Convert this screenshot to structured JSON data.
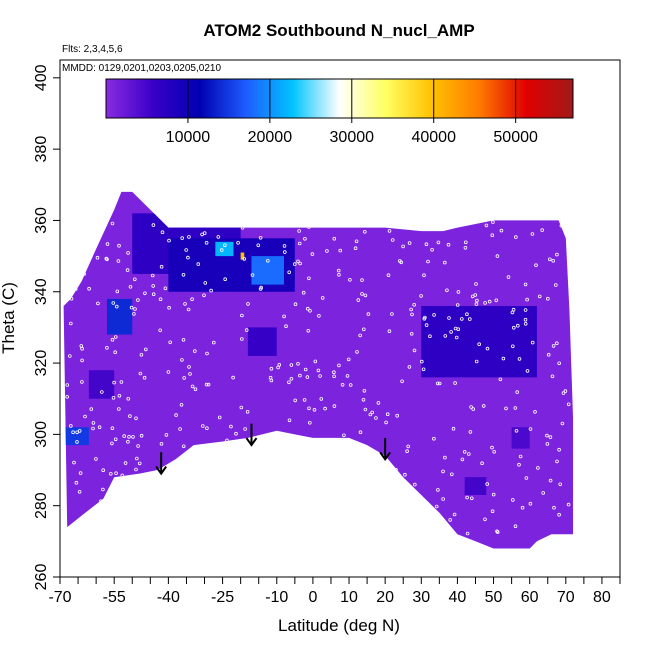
{
  "chart_data": {
    "type": "heatmap",
    "title": "ATOM2 Southbound N_nucl_AMP",
    "flights_label": "Flts: 2,3,4,5,6",
    "dates_label": "MMDD: 0129,0201,0203,0205,0210",
    "xlabel": "Latitude (deg N)",
    "ylabel": "Theta (C)",
    "xlim": [
      -70,
      85
    ],
    "ylim": [
      260,
      405
    ],
    "x_ticks": [
      -70,
      -55,
      -40,
      -25,
      -10,
      0,
      10,
      20,
      30,
      40,
      50,
      60,
      70,
      80
    ],
    "x_tick_labels": [
      "-70",
      "-55",
      "-40",
      "-25",
      "-10",
      "0",
      "10",
      "20",
      "30",
      "40",
      "50",
      "60",
      "70",
      "80"
    ],
    "x_minor_ticks": [
      -65,
      -60,
      -50,
      -45,
      -35,
      -30,
      -20,
      -15,
      -5,
      5,
      15,
      25,
      35,
      45,
      55,
      65,
      75,
      85
    ],
    "y_ticks": [
      260,
      280,
      300,
      320,
      340,
      360,
      380,
      400
    ],
    "y_tick_labels": [
      "260",
      "280",
      "300",
      "320",
      "340",
      "360",
      "380",
      "400"
    ],
    "colorbar": {
      "range": [
        0,
        57000
      ],
      "ticks": [
        10000,
        20000,
        30000,
        40000,
        50000
      ],
      "tick_labels": [
        "10000",
        "20000",
        "30000",
        "40000",
        "50000"
      ],
      "colors": [
        "#8a2be2",
        "#3a00c8",
        "#0000b0",
        "#1e5cff",
        "#00c4ff",
        "#ffffff",
        "#ffff60",
        "#ffc000",
        "#ff7a00",
        "#e00000",
        "#a01a1a"
      ]
    },
    "domain_outline": [
      [
        -68,
        274
      ],
      [
        -63,
        278
      ],
      [
        -58,
        282
      ],
      [
        -55,
        288
      ],
      [
        -48,
        289
      ],
      [
        -43,
        290
      ],
      [
        -38,
        293
      ],
      [
        -33,
        297
      ],
      [
        -25,
        298
      ],
      [
        -18,
        299
      ],
      [
        -10,
        301
      ],
      [
        -5,
        300
      ],
      [
        0,
        299
      ],
      [
        5,
        299
      ],
      [
        10,
        299
      ],
      [
        15,
        297
      ],
      [
        20,
        294
      ],
      [
        25,
        288
      ],
      [
        30,
        283
      ],
      [
        35,
        278
      ],
      [
        40,
        272
      ],
      [
        45,
        270
      ],
      [
        50,
        268
      ],
      [
        55,
        268
      ],
      [
        58,
        268
      ],
      [
        60,
        268
      ],
      [
        62,
        270
      ],
      [
        66,
        272
      ],
      [
        72,
        272
      ],
      [
        72,
        305
      ],
      [
        71,
        335
      ],
      [
        70,
        355
      ],
      [
        68,
        360
      ],
      [
        55,
        360
      ],
      [
        50,
        360
      ],
      [
        45,
        359
      ],
      [
        40,
        358
      ],
      [
        36,
        357
      ],
      [
        30,
        357
      ],
      [
        20,
        358
      ],
      [
        10,
        358
      ],
      [
        0,
        358
      ],
      [
        -10,
        358
      ],
      [
        -20,
        358
      ],
      [
        -30,
        358
      ],
      [
        -40,
        358
      ],
      [
        -50,
        368
      ],
      [
        -53,
        368
      ],
      [
        -55,
        363
      ],
      [
        -60,
        352
      ],
      [
        -64,
        343
      ],
      [
        -67,
        338
      ],
      [
        -69,
        336
      ]
    ],
    "background_value": 1000,
    "features": [
      {
        "name": "upper-band",
        "x": [
          -50,
          -20
        ],
        "y": [
          345,
          362
        ],
        "value": 7000
      },
      {
        "name": "upper-band-b",
        "x": [
          -40,
          -5
        ],
        "y": [
          340,
          355
        ],
        "value": 9000
      },
      {
        "name": "bright-spot-1",
        "x": [
          -27,
          -22
        ],
        "y": [
          350,
          354
        ],
        "value": 22000
      },
      {
        "name": "hot-spot",
        "x": [
          -20,
          -19
        ],
        "y": [
          349,
          351
        ],
        "value": 40000
      },
      {
        "name": "bright-spot-2",
        "x": [
          -17,
          -8
        ],
        "y": [
          342,
          350
        ],
        "value": 18000
      },
      {
        "name": "blob-south",
        "x": [
          -57,
          -50
        ],
        "y": [
          328,
          338
        ],
        "value": 14000
      },
      {
        "name": "blob-mid",
        "x": [
          -18,
          -10
        ],
        "y": [
          322,
          330
        ],
        "value": 6000
      },
      {
        "name": "blob-left-low",
        "x": [
          -69,
          -62
        ],
        "y": [
          297,
          302
        ],
        "value": 15000
      },
      {
        "name": "north-plume",
        "x": [
          30,
          62
        ],
        "y": [
          316,
          336
        ],
        "value": 7000
      },
      {
        "name": "patch-a",
        "x": [
          -62,
          -55
        ],
        "y": [
          310,
          318
        ],
        "value": 5000
      },
      {
        "name": "patch-b",
        "x": [
          42,
          48
        ],
        "y": [
          283,
          288
        ],
        "value": 5000
      },
      {
        "name": "patch-c",
        "x": [
          55,
          60
        ],
        "y": [
          296,
          302
        ],
        "value": 4500
      }
    ],
    "arrows": [
      {
        "x": -42,
        "y_start": 295,
        "y_end": 289
      },
      {
        "x": -17,
        "y_start": 303,
        "y_end": 297
      },
      {
        "x": 20,
        "y_start": 299,
        "y_end": 293
      }
    ]
  }
}
